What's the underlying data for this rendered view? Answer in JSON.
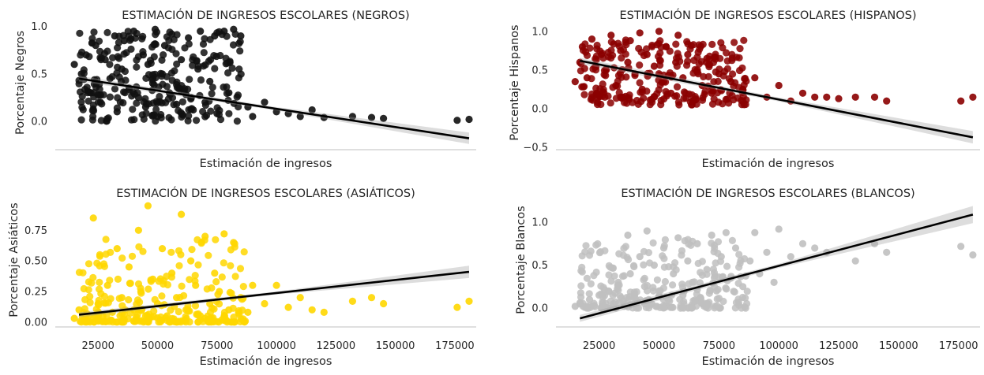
{
  "chart_data": [
    {
      "type": "scatter",
      "title": "ESTIMACIÓN DE INGRESOS ESCOLARES (NEGROS)",
      "xlabel": "Estimación de ingresos",
      "ylabel": "Porcentaje Negros",
      "color": "#111111",
      "xlim": [
        7000,
        184000
      ],
      "ylim": [
        -0.3,
        1.03
      ],
      "xticks": [],
      "yticks": [
        0.0,
        0.5,
        1.0
      ],
      "ytick_labels": [
        "0.0",
        "0.5",
        "1.0"
      ],
      "grid": false,
      "regression": {
        "x": [
          17000,
          181000
        ],
        "y": [
          0.45,
          -0.18
        ],
        "band_halfwidth": [
          0.03,
          0.06
        ]
      },
      "points": [
        [
          15000,
          0.6
        ],
        [
          18000,
          0.5
        ],
        [
          20000,
          0.7
        ],
        [
          22000,
          0.3
        ],
        [
          24000,
          0.8
        ],
        [
          26000,
          0.2
        ],
        [
          28000,
          0.65
        ],
        [
          30000,
          0.45
        ],
        [
          32000,
          0.9
        ],
        [
          33000,
          0.1
        ],
        [
          35000,
          0.55
        ],
        [
          36000,
          0.85
        ],
        [
          38000,
          0.35
        ],
        [
          40000,
          0.95
        ],
        [
          42000,
          0.25
        ],
        [
          44000,
          0.7
        ],
        [
          45000,
          0.15
        ],
        [
          46000,
          0.6
        ],
        [
          48000,
          0.4
        ],
        [
          49000,
          0.97
        ],
        [
          50000,
          0.05
        ],
        [
          52000,
          0.5
        ],
        [
          53000,
          0.8
        ],
        [
          55000,
          0.3
        ],
        [
          56000,
          0.92
        ],
        [
          58000,
          0.18
        ],
        [
          60000,
          0.65
        ],
        [
          62000,
          0.28
        ],
        [
          63000,
          0.88
        ],
        [
          65000,
          0.12
        ],
        [
          67000,
          0.55
        ],
        [
          68000,
          0.95
        ],
        [
          70000,
          0.2
        ],
        [
          72000,
          0.42
        ],
        [
          74000,
          0.9
        ],
        [
          75000,
          0.08
        ],
        [
          78000,
          0.95
        ],
        [
          80000,
          0.3
        ],
        [
          82000,
          0.97
        ],
        [
          85000,
          0.9
        ],
        [
          88000,
          0.15
        ],
        [
          90000,
          0.05
        ],
        [
          95000,
          0.2
        ],
        [
          100000,
          0.1
        ],
        [
          105000,
          0.08
        ],
        [
          110000,
          0.05
        ],
        [
          115000,
          0.12
        ],
        [
          120000,
          0.04
        ],
        [
          132000,
          0.05
        ],
        [
          140000,
          0.04
        ],
        [
          145000,
          0.03
        ],
        [
          176000,
          0.01
        ],
        [
          181000,
          0.02
        ]
      ]
    },
    {
      "type": "scatter",
      "title": "ESTIMACIÓN DE INGRESOS ESCOLARES (HISPANOS)",
      "xlabel": "Estimación de ingresos",
      "ylabel": "Porcentaje Hispanos",
      "color": "#8b0000",
      "xlim": [
        7000,
        184000
      ],
      "ylim": [
        -0.53,
        1.1
      ],
      "xticks": [],
      "yticks": [
        -0.5,
        0.0,
        0.5,
        1.0
      ],
      "ytick_labels": [
        "−0.5",
        "0.0",
        "0.5",
        "1.0"
      ],
      "grid": false,
      "regression": {
        "x": [
          17000,
          181000
        ],
        "y": [
          0.62,
          -0.37
        ],
        "band_halfwidth": [
          0.04,
          0.08
        ]
      },
      "points": [
        [
          15000,
          0.35
        ],
        [
          17000,
          0.6
        ],
        [
          18000,
          0.8
        ],
        [
          20000,
          0.4
        ],
        [
          22000,
          0.9
        ],
        [
          24000,
          0.2
        ],
        [
          26000,
          0.7
        ],
        [
          28000,
          0.5
        ],
        [
          30000,
          0.95
        ],
        [
          32000,
          0.3
        ],
        [
          34000,
          0.75
        ],
        [
          35000,
          0.15
        ],
        [
          37000,
          0.6
        ],
        [
          38000,
          0.88
        ],
        [
          40000,
          0.45
        ],
        [
          42000,
          0.98
        ],
        [
          43000,
          0.25
        ],
        [
          45000,
          0.7
        ],
        [
          47000,
          0.12
        ],
        [
          48000,
          0.55
        ],
        [
          50000,
          1.0
        ],
        [
          52000,
          0.35
        ],
        [
          53000,
          0.8
        ],
        [
          55000,
          0.2
        ],
        [
          57000,
          0.6
        ],
        [
          58000,
          0.95
        ],
        [
          60000,
          0.4
        ],
        [
          62000,
          0.7
        ],
        [
          64000,
          0.1
        ],
        [
          66000,
          0.5
        ],
        [
          68000,
          0.3
        ],
        [
          70000,
          0.65
        ],
        [
          72000,
          0.2
        ],
        [
          75000,
          0.45
        ],
        [
          78000,
          0.12
        ],
        [
          80000,
          0.35
        ],
        [
          85000,
          0.25
        ],
        [
          90000,
          0.4
        ],
        [
          95000,
          0.15
        ],
        [
          100000,
          0.3
        ],
        [
          105000,
          0.1
        ],
        [
          110000,
          0.2
        ],
        [
          115000,
          0.15
        ],
        [
          120000,
          0.15
        ],
        [
          125000,
          0.13
        ],
        [
          132000,
          0.15
        ],
        [
          140000,
          0.15
        ],
        [
          145000,
          0.1
        ],
        [
          176000,
          0.1
        ],
        [
          181000,
          0.15
        ]
      ]
    },
    {
      "type": "scatter",
      "title": "ESTIMACIÓN DE INGRESOS ESCOLARES (ASIÁTICOS)",
      "xlabel": "Estimación de ingresos",
      "ylabel": "Porcentaje Asiáticos",
      "color": "#ffd700",
      "xlim": [
        7000,
        184000
      ],
      "ylim": [
        -0.04,
        0.99
      ],
      "xticks": [
        25000,
        50000,
        75000,
        100000,
        125000,
        150000,
        175000
      ],
      "yticks": [
        0.0,
        0.25,
        0.5,
        0.75
      ],
      "ytick_labels": [
        "0.00",
        "0.25",
        "0.50",
        "0.75"
      ],
      "grid": false,
      "regression": {
        "x": [
          17000,
          181000
        ],
        "y": [
          0.06,
          0.41
        ],
        "band_halfwidth": [
          0.02,
          0.05
        ]
      },
      "points": [
        [
          15000,
          0.03
        ],
        [
          17000,
          0.1
        ],
        [
          19000,
          0.02
        ],
        [
          21000,
          0.05
        ],
        [
          23000,
          0.85
        ],
        [
          25000,
          0.15
        ],
        [
          27000,
          0.05
        ],
        [
          29000,
          0.3
        ],
        [
          31000,
          0.08
        ],
        [
          33000,
          0.6
        ],
        [
          35000,
          0.2
        ],
        [
          36000,
          0.02
        ],
        [
          38000,
          0.45
        ],
        [
          40000,
          0.1
        ],
        [
          42000,
          0.75
        ],
        [
          43000,
          0.25
        ],
        [
          45000,
          0.05
        ],
        [
          46000,
          0.95
        ],
        [
          48000,
          0.35
        ],
        [
          50000,
          0.15
        ],
        [
          52000,
          0.6
        ],
        [
          54000,
          0.05
        ],
        [
          56000,
          0.4
        ],
        [
          58000,
          0.2
        ],
        [
          60000,
          0.88
        ],
        [
          62000,
          0.1
        ],
        [
          64000,
          0.5
        ],
        [
          66000,
          0.3
        ],
        [
          68000,
          0.05
        ],
        [
          70000,
          0.7
        ],
        [
          72000,
          0.15
        ],
        [
          74000,
          0.4
        ],
        [
          76000,
          0.25
        ],
        [
          78000,
          0.72
        ],
        [
          80000,
          0.1
        ],
        [
          82000,
          0.65
        ],
        [
          85000,
          0.2
        ],
        [
          88000,
          0.08
        ],
        [
          90000,
          0.3
        ],
        [
          95000,
          0.15
        ],
        [
          100000,
          0.3
        ],
        [
          105000,
          0.12
        ],
        [
          110000,
          0.2
        ],
        [
          115000,
          0.1
        ],
        [
          120000,
          0.08
        ],
        [
          132000,
          0.17
        ],
        [
          140000,
          0.2
        ],
        [
          145000,
          0.15
        ],
        [
          176000,
          0.12
        ],
        [
          181000,
          0.17
        ]
      ]
    },
    {
      "type": "scatter",
      "title": "ESTIMACIÓN DE INGRESOS ESCOLARES (BLANCOS)",
      "xlabel": "Estimación de ingresos",
      "ylabel": "Porcentaje Blancos",
      "color": "#c0c0c0",
      "xlim": [
        7000,
        184000
      ],
      "ylim": [
        -0.22,
        1.25
      ],
      "xticks": [
        25000,
        50000,
        75000,
        100000,
        125000,
        150000,
        175000
      ],
      "yticks": [
        0.0,
        0.5,
        1.0
      ],
      "ytick_labels": [
        "0.0",
        "0.5",
        "1.0"
      ],
      "grid": false,
      "regression": {
        "x": [
          17000,
          181000
        ],
        "y": [
          -0.12,
          1.09
        ],
        "band_halfwidth": [
          0.04,
          0.1
        ]
      },
      "points": [
        [
          15000,
          0.02
        ],
        [
          17000,
          0.05
        ],
        [
          19000,
          0.01
        ],
        [
          21000,
          0.1
        ],
        [
          23000,
          0.03
        ],
        [
          25000,
          0.15
        ],
        [
          27000,
          0.02
        ],
        [
          29000,
          0.2
        ],
        [
          31000,
          0.05
        ],
        [
          33000,
          0.3
        ],
        [
          35000,
          0.08
        ],
        [
          37000,
          0.85
        ],
        [
          38000,
          0.4
        ],
        [
          40000,
          0.12
        ],
        [
          42000,
          0.6
        ],
        [
          44000,
          0.25
        ],
        [
          45000,
          0.9
        ],
        [
          47000,
          0.05
        ],
        [
          48000,
          0.5
        ],
        [
          50000,
          0.2
        ],
        [
          52000,
          0.7
        ],
        [
          54000,
          0.1
        ],
        [
          56000,
          0.4
        ],
        [
          58000,
          0.82
        ],
        [
          60000,
          0.15
        ],
        [
          62000,
          0.55
        ],
        [
          64000,
          0.3
        ],
        [
          66000,
          0.75
        ],
        [
          68000,
          0.05
        ],
        [
          70000,
          0.45
        ],
        [
          72000,
          0.85
        ],
        [
          74000,
          0.2
        ],
        [
          76000,
          0.6
        ],
        [
          78000,
          0.88
        ],
        [
          80000,
          0.35
        ],
        [
          82000,
          0.7
        ],
        [
          85000,
          0.25
        ],
        [
          88000,
          0.55
        ],
        [
          90000,
          0.88
        ],
        [
          92000,
          0.4
        ],
        [
          95000,
          0.65
        ],
        [
          98000,
          0.3
        ],
        [
          100000,
          0.92
        ],
        [
          105000,
          0.6
        ],
        [
          110000,
          0.75
        ],
        [
          115000,
          0.7
        ],
        [
          120000,
          0.65
        ],
        [
          132000,
          0.55
        ],
        [
          140000,
          0.75
        ],
        [
          145000,
          0.65
        ],
        [
          176000,
          0.72
        ],
        [
          181000,
          0.62
        ]
      ]
    }
  ]
}
